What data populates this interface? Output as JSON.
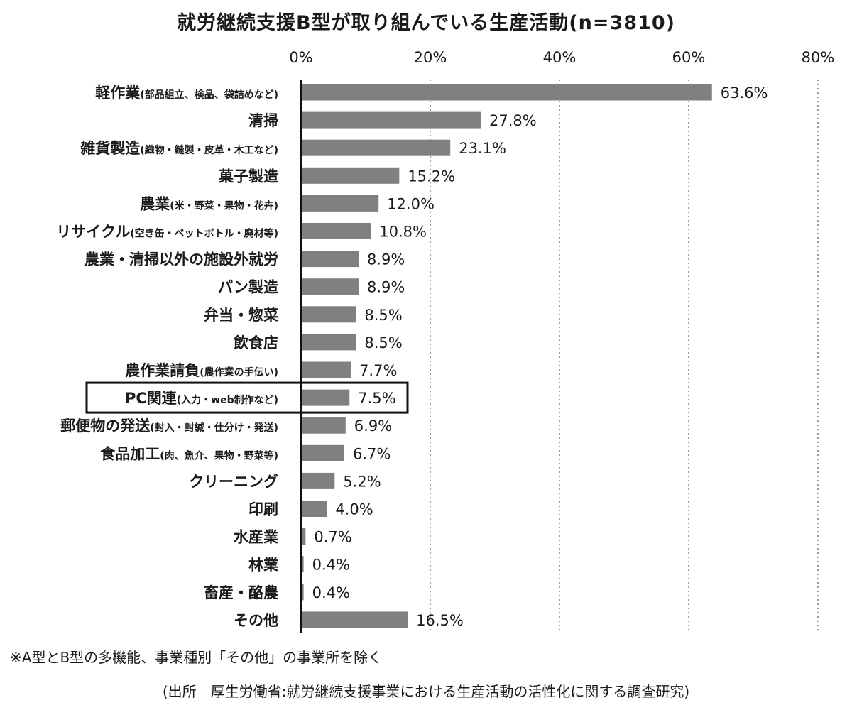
{
  "chart_data": {
    "type": "bar",
    "orientation": "horizontal",
    "title": "就労継続支援B型が取り組んでいる生産活動(n=3810)",
    "x_ticks": [
      "0%",
      "20%",
      "40%",
      "60%",
      "80%"
    ],
    "xlim": [
      0,
      80
    ],
    "x_tick_positions": [
      0,
      20,
      40,
      60,
      80
    ],
    "grid": "vertical dotted",
    "bar_color": "#808080",
    "categories": [
      {
        "name": "軽作業",
        "detail": "(部品組立、検品、袋詰めなど)",
        "value": 63.6,
        "label": "63.6%"
      },
      {
        "name": "清掃",
        "detail": "",
        "value": 27.8,
        "label": "27.8%"
      },
      {
        "name": "雑貨製造",
        "detail": "(織物・縫製・皮革・木工など)",
        "value": 23.1,
        "label": "23.1%"
      },
      {
        "name": "菓子製造",
        "detail": "",
        "value": 15.2,
        "label": "15.2%"
      },
      {
        "name": "農業",
        "detail": "(米・野菜・果物・花卉)",
        "value": 12.0,
        "label": "12.0%"
      },
      {
        "name": "リサイクル",
        "detail": "(空き缶・ペットボトル・廃材等)",
        "value": 10.8,
        "label": "10.8%"
      },
      {
        "name": "農業・清掃以外の施設外就労",
        "detail": "",
        "value": 8.9,
        "label": "8.9%"
      },
      {
        "name": "パン製造",
        "detail": "",
        "value": 8.9,
        "label": "8.9%"
      },
      {
        "name": "弁当・惣菜",
        "detail": "",
        "value": 8.5,
        "label": "8.5%"
      },
      {
        "name": "飲食店",
        "detail": "",
        "value": 8.5,
        "label": "8.5%"
      },
      {
        "name": "農作業請負",
        "detail": "(農作業の手伝い)",
        "value": 7.7,
        "label": "7.7%"
      },
      {
        "name": "PC関連",
        "detail": "(入力・web制作など)",
        "value": 7.5,
        "label": "7.5%",
        "highlighted": true
      },
      {
        "name": "郵便物の発送",
        "detail": "(封入・封緘・仕分け・発送)",
        "value": 6.9,
        "label": "6.9%"
      },
      {
        "name": "食品加工",
        "detail": "(肉、魚介、果物・野菜等)",
        "value": 6.7,
        "label": "6.7%"
      },
      {
        "name": "クリーニング",
        "detail": "",
        "value": 5.2,
        "label": "5.2%"
      },
      {
        "name": "印刷",
        "detail": "",
        "value": 4.0,
        "label": "4.0%"
      },
      {
        "name": "水産業",
        "detail": "",
        "value": 0.7,
        "label": "0.7%"
      },
      {
        "name": "林業",
        "detail": "",
        "value": 0.4,
        "label": "0.4%"
      },
      {
        "name": "畜産・酪農",
        "detail": "",
        "value": 0.4,
        "label": "0.4%"
      },
      {
        "name": "その他",
        "detail": "",
        "value": 16.5,
        "label": "16.5%"
      }
    ]
  },
  "footnotes": {
    "note": "※A型とB型の多機能、事業種別「その他」の事業所を除く",
    "source": "(出所　厚生労働省:就労継続支援事業における生産活動の活性化に関する調査研究)"
  }
}
